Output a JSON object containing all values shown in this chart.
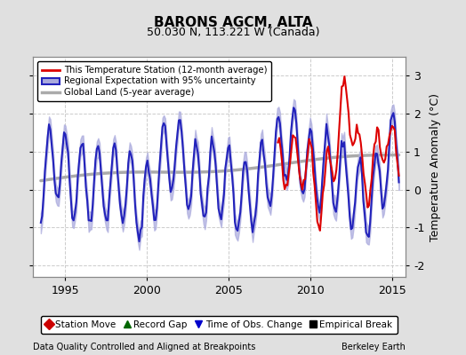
{
  "title": "BARONS AGCM, ALTA",
  "subtitle": "50.030 N, 113.221 W (Canada)",
  "xlabel_left": "Data Quality Controlled and Aligned at Breakpoints",
  "xlabel_right": "Berkeley Earth",
  "ylabel": "Temperature Anomaly (°C)",
  "xlim": [
    1993.0,
    2015.8
  ],
  "ylim": [
    -2.3,
    3.5
  ],
  "yticks": [
    -2,
    -1,
    0,
    1,
    2,
    3
  ],
  "xticks": [
    1995,
    2000,
    2005,
    2010,
    2015
  ],
  "bg_color": "#e0e0e0",
  "plot_bg_color": "#ffffff",
  "grid_color": "#cccccc",
  "legend_items": [
    {
      "label": "This Temperature Station (12-month average)",
      "color": "#dd0000",
      "lw": 1.5
    },
    {
      "label": "Regional Expectation with 95% uncertainty",
      "color": "#2222bb",
      "lw": 1.5,
      "fill": "#aaaadd"
    },
    {
      "label": "Global Land (5-year average)",
      "color": "#aaaaaa",
      "lw": 2.5
    }
  ],
  "bottom_legend": [
    {
      "label": "Station Move",
      "color": "#cc0000",
      "marker": "D"
    },
    {
      "label": "Record Gap",
      "color": "#006600",
      "marker": "^"
    },
    {
      "label": "Time of Obs. Change",
      "color": "#0000cc",
      "marker": "v"
    },
    {
      "label": "Empirical Break",
      "color": "#000000",
      "marker": "s"
    }
  ]
}
